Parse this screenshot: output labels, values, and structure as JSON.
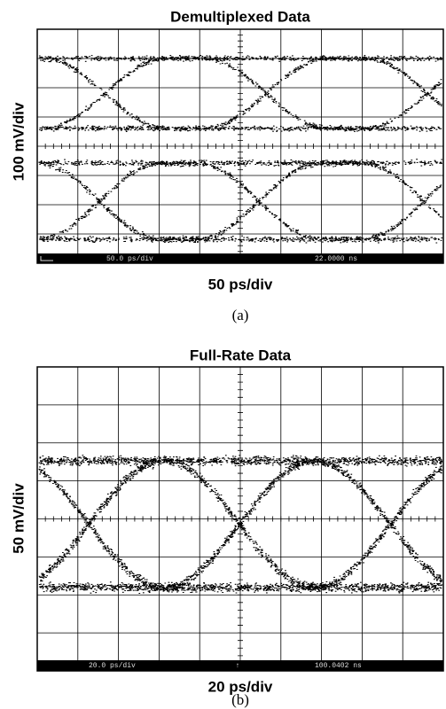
{
  "panels": [
    {
      "title": "Demultiplexed Data",
      "y_label": "100 mV/div",
      "x_label": "50 ps/div",
      "caption": "(a)",
      "status": {
        "left": "50.0 ps/div",
        "right": "22.0000 ns"
      }
    },
    {
      "title": "Full-Rate Data",
      "y_label": "50 mV/div",
      "x_label": "20 ps/div",
      "caption": "(b)",
      "status": {
        "left": "20.0 ps/div",
        "marker": "↑",
        "right": "100.0402 ns"
      }
    }
  ]
}
